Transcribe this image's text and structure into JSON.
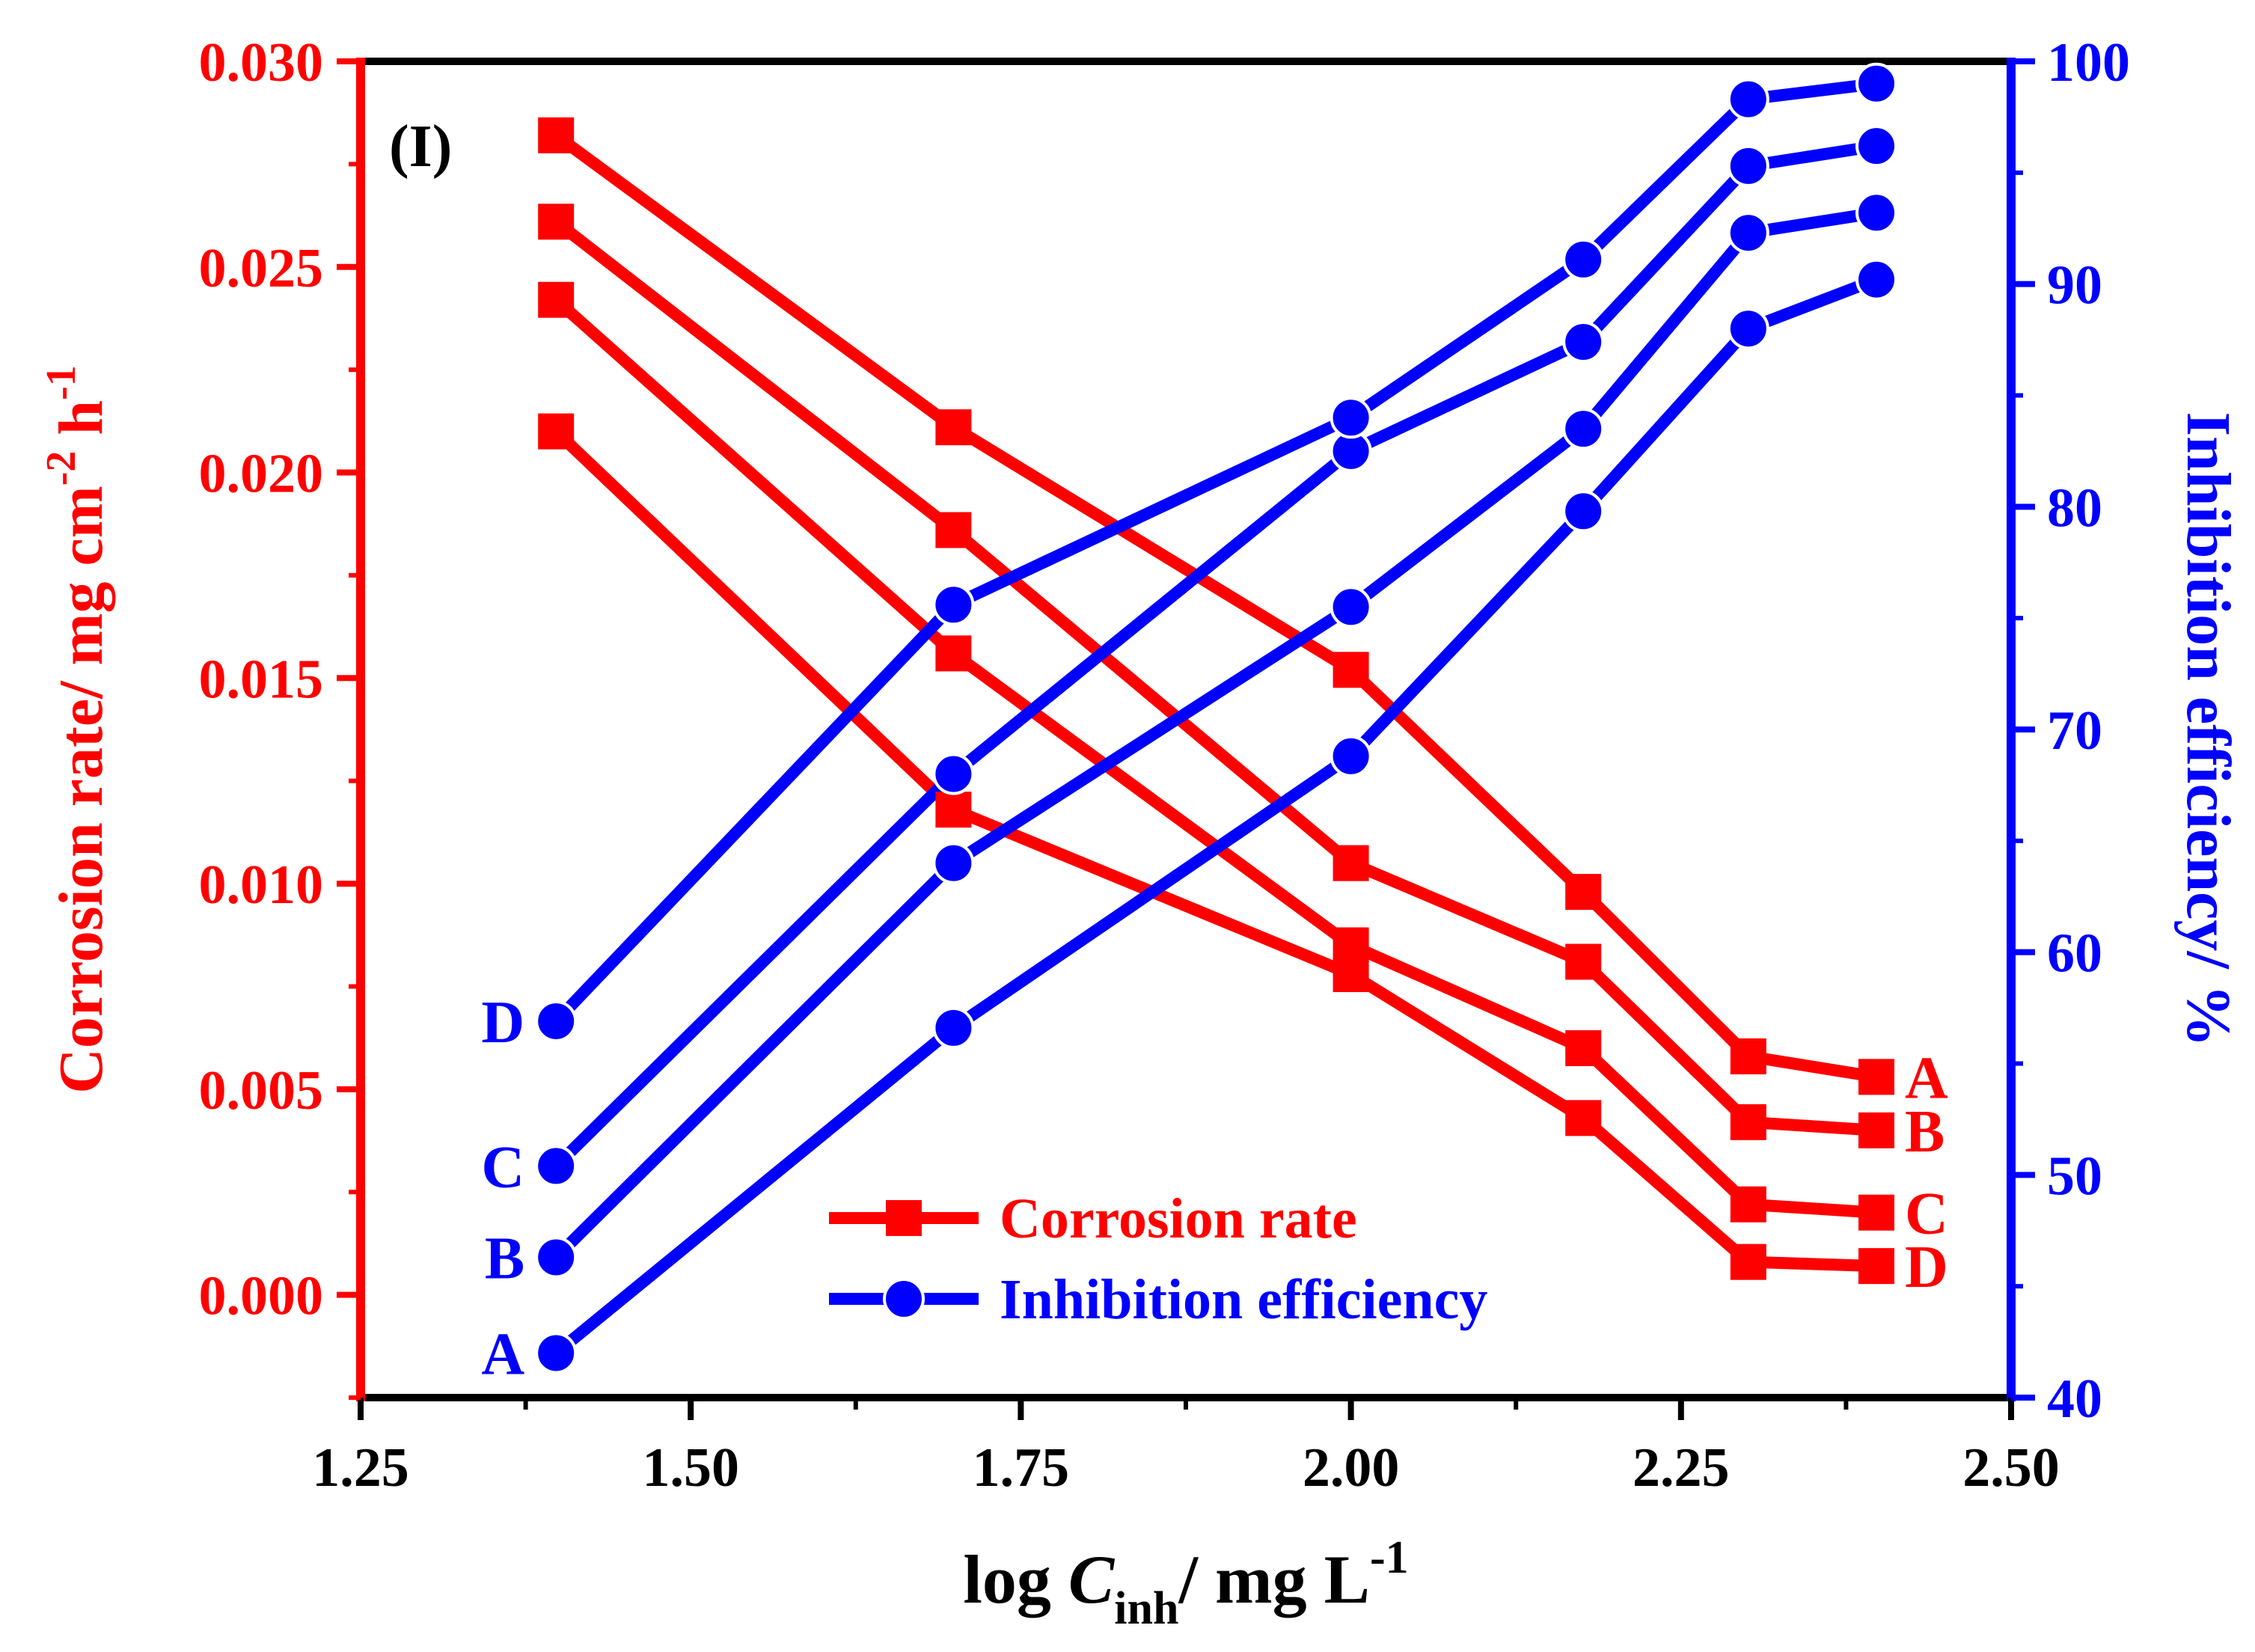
{
  "panel_label": "(I)",
  "colors": {
    "left_axis": "#ff0000",
    "right_axis": "#0000ff",
    "frame": "#000000",
    "corrosion": "#ff0000",
    "inhibition": "#0000ff"
  },
  "chart_data": {
    "type": "line",
    "title": "",
    "xlabel": {
      "main": "log ",
      "italic": "C",
      "sub": "inh",
      "rest": "/ mg L",
      "sup": "-1"
    },
    "ylabel_left": {
      "main": "Corrosion rate/ mg cm",
      "sup1": "-2",
      "mid": " h",
      "sup2": "-1"
    },
    "ylabel_right": "Inhibition efficiency/ %",
    "xlim": [
      1.25,
      2.5
    ],
    "xticks": [
      1.25,
      1.5,
      1.75,
      2.0,
      2.25,
      2.5
    ],
    "xtick_labels": [
      "1.25",
      "1.50",
      "1.75",
      "2.00",
      "2.25",
      "2.50"
    ],
    "ylim_left": [
      -0.0025,
      0.03
    ],
    "yticks_left": [
      0.0,
      0.005,
      0.01,
      0.015,
      0.02,
      0.025,
      0.03
    ],
    "ytick_labels_left": [
      "0.000",
      "0.005",
      "0.010",
      "0.015",
      "0.020",
      "0.025",
      "0.030"
    ],
    "ylim_right": [
      40,
      100
    ],
    "yticks_right": [
      40,
      50,
      60,
      70,
      80,
      90,
      100
    ],
    "ytick_labels_right": [
      "40",
      "50",
      "60",
      "70",
      "80",
      "90",
      "100"
    ],
    "x": [
      1.398,
      1.699,
      2.0,
      2.176,
      2.301,
      2.398
    ],
    "corrosion_rate": [
      {
        "name": "A",
        "values": [
          0.0282,
          0.0211,
          0.0152,
          0.0098,
          0.0058,
          0.0053
        ]
      },
      {
        "name": "B",
        "values": [
          0.0261,
          0.0186,
          0.0105,
          0.0081,
          0.0042,
          0.004
        ]
      },
      {
        "name": "C",
        "values": [
          0.0242,
          0.0156,
          0.0085,
          0.006,
          0.0022,
          0.002
        ]
      },
      {
        "name": "D",
        "values": [
          0.021,
          0.0118,
          0.0078,
          0.0043,
          0.0008,
          0.0007
        ]
      }
    ],
    "inhibition_efficiency": [
      {
        "name": "A",
        "values": [
          42,
          56.6,
          68.8,
          79.8,
          88,
          90.2
        ]
      },
      {
        "name": "B",
        "values": [
          46.3,
          64,
          75.5,
          83.5,
          92.3,
          93.2
        ]
      },
      {
        "name": "C",
        "values": [
          50.4,
          68,
          82.5,
          87.4,
          95.3,
          96.2
        ]
      },
      {
        "name": "D",
        "values": [
          56.9,
          75.6,
          84,
          91.1,
          98.3,
          99
        ]
      }
    ],
    "legend": {
      "position": "bottom-center",
      "entries": [
        {
          "label": "Corrosion rate",
          "marker": "square",
          "color": "#ff0000"
        },
        {
          "label": "Inhibition efficiency",
          "marker": "circle",
          "color": "#0000ff"
        }
      ]
    }
  }
}
